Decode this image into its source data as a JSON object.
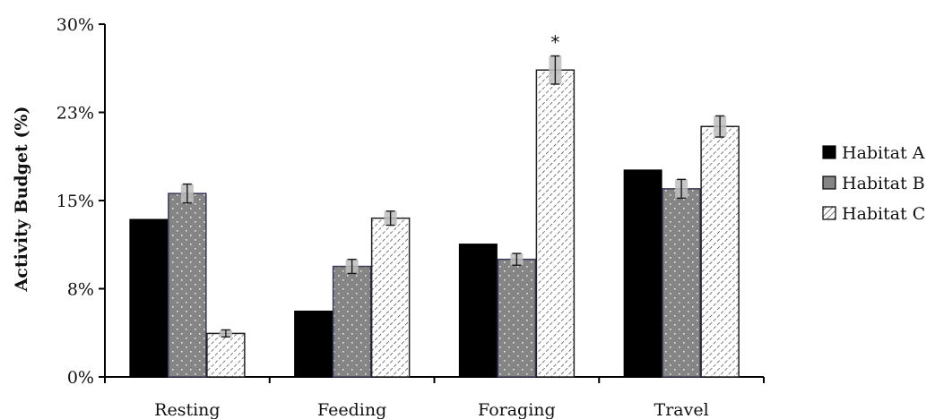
{
  "chart_data": {
    "type": "bar",
    "title": "",
    "xlabel": "",
    "ylabel": "Activity Budget (%)",
    "ylim": [
      0,
      30
    ],
    "yticks": [
      {
        "value": 0,
        "label": "0%"
      },
      {
        "value": 7.5,
        "label": "8%"
      },
      {
        "value": 15,
        "label": "15%"
      },
      {
        "value": 22.5,
        "label": "23%"
      },
      {
        "value": 30,
        "label": "30%"
      }
    ],
    "categories": [
      "Resting",
      "Feeding",
      "Foraging",
      "Travel"
    ],
    "series": [
      {
        "name": "Habitat A",
        "values": [
          13.4,
          5.6,
          11.3,
          17.6
        ],
        "errors": [
          null,
          null,
          null,
          null
        ],
        "fill": "#000000",
        "pattern": "solid"
      },
      {
        "name": "Habitat B",
        "values": [
          15.6,
          9.4,
          10.0,
          16.0
        ],
        "errors": [
          0.8,
          0.6,
          0.5,
          0.8
        ],
        "fill": "#858585",
        "pattern": "dots"
      },
      {
        "name": "Habitat C",
        "values": [
          3.7,
          13.5,
          26.1,
          21.3
        ],
        "errors": [
          0.3,
          0.6,
          1.2,
          0.9
        ],
        "fill": "#ffffff",
        "pattern": "diagonal"
      }
    ],
    "annotations": [
      {
        "category": "Foraging",
        "series": "Habitat C",
        "text": "*"
      }
    ],
    "legend_position": "right",
    "grid": false
  }
}
